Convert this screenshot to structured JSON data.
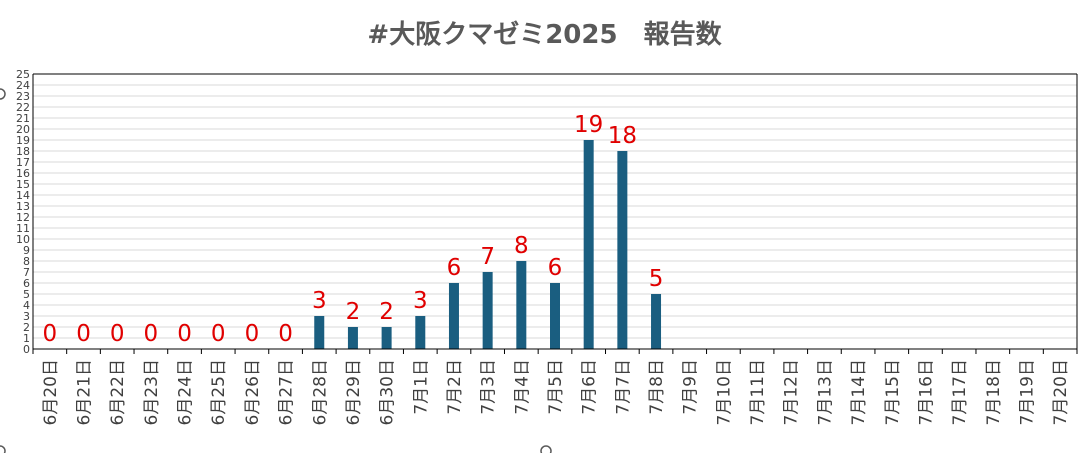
{
  "chart_data": {
    "type": "bar",
    "title": "#大阪クマゼミ2025　報告数",
    "xlabel": "",
    "ylabel": "",
    "ylim": [
      0,
      25
    ],
    "yticks": [
      0,
      1,
      2,
      3,
      4,
      5,
      6,
      7,
      8,
      9,
      10,
      11,
      12,
      13,
      14,
      15,
      16,
      17,
      18,
      19,
      20,
      21,
      22,
      23,
      24,
      25
    ],
    "grid": true,
    "legend": "none",
    "bar_color": "#1a5e80",
    "label_color": "#e00000",
    "categories": [
      "6月20日",
      "6月21日",
      "6月22日",
      "6月23日",
      "6月24日",
      "6月25日",
      "6月26日",
      "6月27日",
      "6月28日",
      "6月29日",
      "6月30日",
      "7月1日",
      "7月2日",
      "7月3日",
      "7月4日",
      "7月5日",
      "7月6日",
      "7月7日",
      "7月8日",
      "7月9日",
      "7月10日",
      "7月11日",
      "7月12日",
      "7月13日",
      "7月14日",
      "7月15日",
      "7月16日",
      "7月17日",
      "7月18日",
      "7月19日",
      "7月20日"
    ],
    "values": [
      0,
      0,
      0,
      0,
      0,
      0,
      0,
      0,
      3,
      2,
      2,
      3,
      6,
      7,
      8,
      6,
      19,
      18,
      5,
      null,
      null,
      null,
      null,
      null,
      null,
      null,
      null,
      null,
      null,
      null,
      null
    ]
  }
}
